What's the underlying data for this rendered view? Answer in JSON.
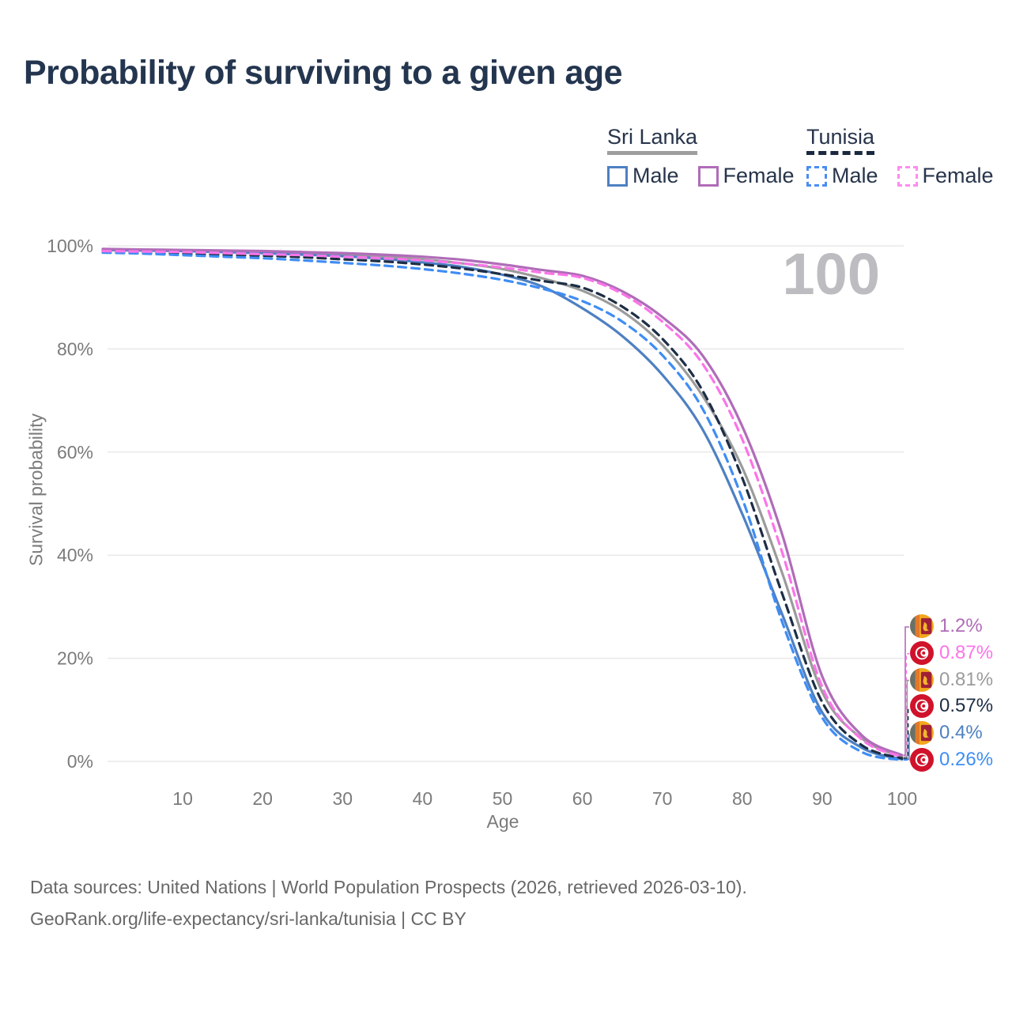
{
  "title": "Probability of surviving to a given age",
  "watermark_age": "100",
  "legend": {
    "groups": [
      {
        "name": "Sri Lanka",
        "line_color": "#9e9e9e",
        "dashed": false,
        "items": [
          {
            "label": "Male",
            "color": "#4e80c2"
          },
          {
            "label": "Female",
            "color": "#b06cb8"
          }
        ]
      },
      {
        "name": "Tunisia",
        "line_color": "#1b2940",
        "dashed": true,
        "items": [
          {
            "label": "Male",
            "color": "#4a8df2"
          },
          {
            "label": "Female",
            "color": "#fc8df0"
          }
        ]
      }
    ]
  },
  "chart_data": {
    "type": "line",
    "title": "Probability of surviving to a given age",
    "xlabel": "Age",
    "ylabel": "Survival probability",
    "xlim": [
      0,
      100
    ],
    "ylim": [
      0,
      100
    ],
    "x_ticks": [
      10,
      20,
      30,
      40,
      50,
      60,
      70,
      80,
      90,
      100
    ],
    "y_ticks": [
      0,
      20,
      40,
      60,
      80,
      100
    ],
    "y_tick_labels": [
      "0%",
      "20%",
      "40%",
      "60%",
      "80%",
      "100%"
    ],
    "grid": "horizontal",
    "legend_position": "top-right",
    "x": [
      0,
      5,
      10,
      15,
      20,
      25,
      30,
      35,
      40,
      45,
      50,
      55,
      60,
      65,
      70,
      75,
      80,
      85,
      90,
      95,
      100
    ],
    "series": [
      {
        "name": "Sri Lanka Female",
        "country": "Sri Lanka",
        "sex": "Female",
        "color": "#b06cb8",
        "dashed": false,
        "flag": "sri-lanka",
        "end_label": "1.2%",
        "values": [
          99.4,
          99.3,
          99.2,
          99.1,
          99.0,
          98.8,
          98.6,
          98.3,
          97.9,
          97.3,
          96.4,
          95.3,
          94.2,
          91.2,
          86.2,
          78.8,
          65.0,
          44.0,
          16.5,
          5.0,
          1.2
        ]
      },
      {
        "name": "Tunisia Female",
        "country": "Tunisia",
        "sex": "Female",
        "color": "#fb74e9",
        "dashed": true,
        "flag": "tunisia",
        "end_label": "0.87%",
        "values": [
          99.0,
          98.9,
          98.8,
          98.6,
          98.4,
          98.2,
          97.9,
          97.6,
          97.2,
          96.6,
          95.8,
          94.8,
          93.8,
          90.7,
          85.3,
          77.2,
          62.5,
          40.5,
          14.5,
          4.2,
          0.87
        ]
      },
      {
        "name": "Sri Lanka Both sexes",
        "country": "Sri Lanka",
        "sex": "Both",
        "color": "#9b9b9b",
        "dashed": false,
        "flag": "sri-lanka",
        "end_label": "0.81%",
        "values": [
          99.3,
          99.2,
          99.1,
          98.9,
          98.8,
          98.6,
          98.3,
          97.9,
          97.4,
          96.6,
          95.5,
          93.7,
          91.3,
          87.3,
          80.8,
          71.0,
          57.0,
          36.5,
          13.5,
          4.4,
          0.81
        ]
      },
      {
        "name": "Tunisia Both sexes",
        "country": "Tunisia",
        "sex": "Both",
        "color": "#1d2e45",
        "dashed": true,
        "flag": "tunisia",
        "end_label": "0.57%",
        "values": [
          98.9,
          98.7,
          98.5,
          98.3,
          98.1,
          97.8,
          97.4,
          97.0,
          96.4,
          95.6,
          94.5,
          93.2,
          91.9,
          88.2,
          82.0,
          72.0,
          55.0,
          32.5,
          11.5,
          3.1,
          0.57
        ]
      },
      {
        "name": "Sri Lanka Male",
        "country": "Sri Lanka",
        "sex": "Male",
        "color": "#4e80c2",
        "dashed": false,
        "flag": "sri-lanka",
        "end_label": "0.4%",
        "values": [
          99.2,
          99.1,
          99.0,
          98.8,
          98.6,
          98.3,
          98.0,
          97.5,
          96.8,
          95.9,
          94.4,
          92.1,
          87.9,
          82.5,
          75.0,
          64.5,
          48.0,
          28.5,
          9.5,
          2.6,
          0.4
        ]
      },
      {
        "name": "Tunisia Male",
        "country": "Tunisia",
        "sex": "Male",
        "color": "#3f8df4",
        "dashed": true,
        "flag": "tunisia",
        "end_label": "0.26%",
        "values": [
          98.7,
          98.5,
          98.2,
          97.9,
          97.6,
          97.2,
          96.7,
          96.2,
          95.5,
          94.6,
          93.4,
          91.7,
          89.3,
          85.3,
          78.8,
          68.5,
          51.0,
          27.0,
          8.5,
          1.8,
          0.26
        ]
      }
    ]
  },
  "footer": {
    "line1": "Data sources: United Nations | World Population Prospects (2026, retrieved 2026-03-10).",
    "line2": "GeoRank.org/life-expectancy/sri-lanka/tunisia | CC BY"
  }
}
